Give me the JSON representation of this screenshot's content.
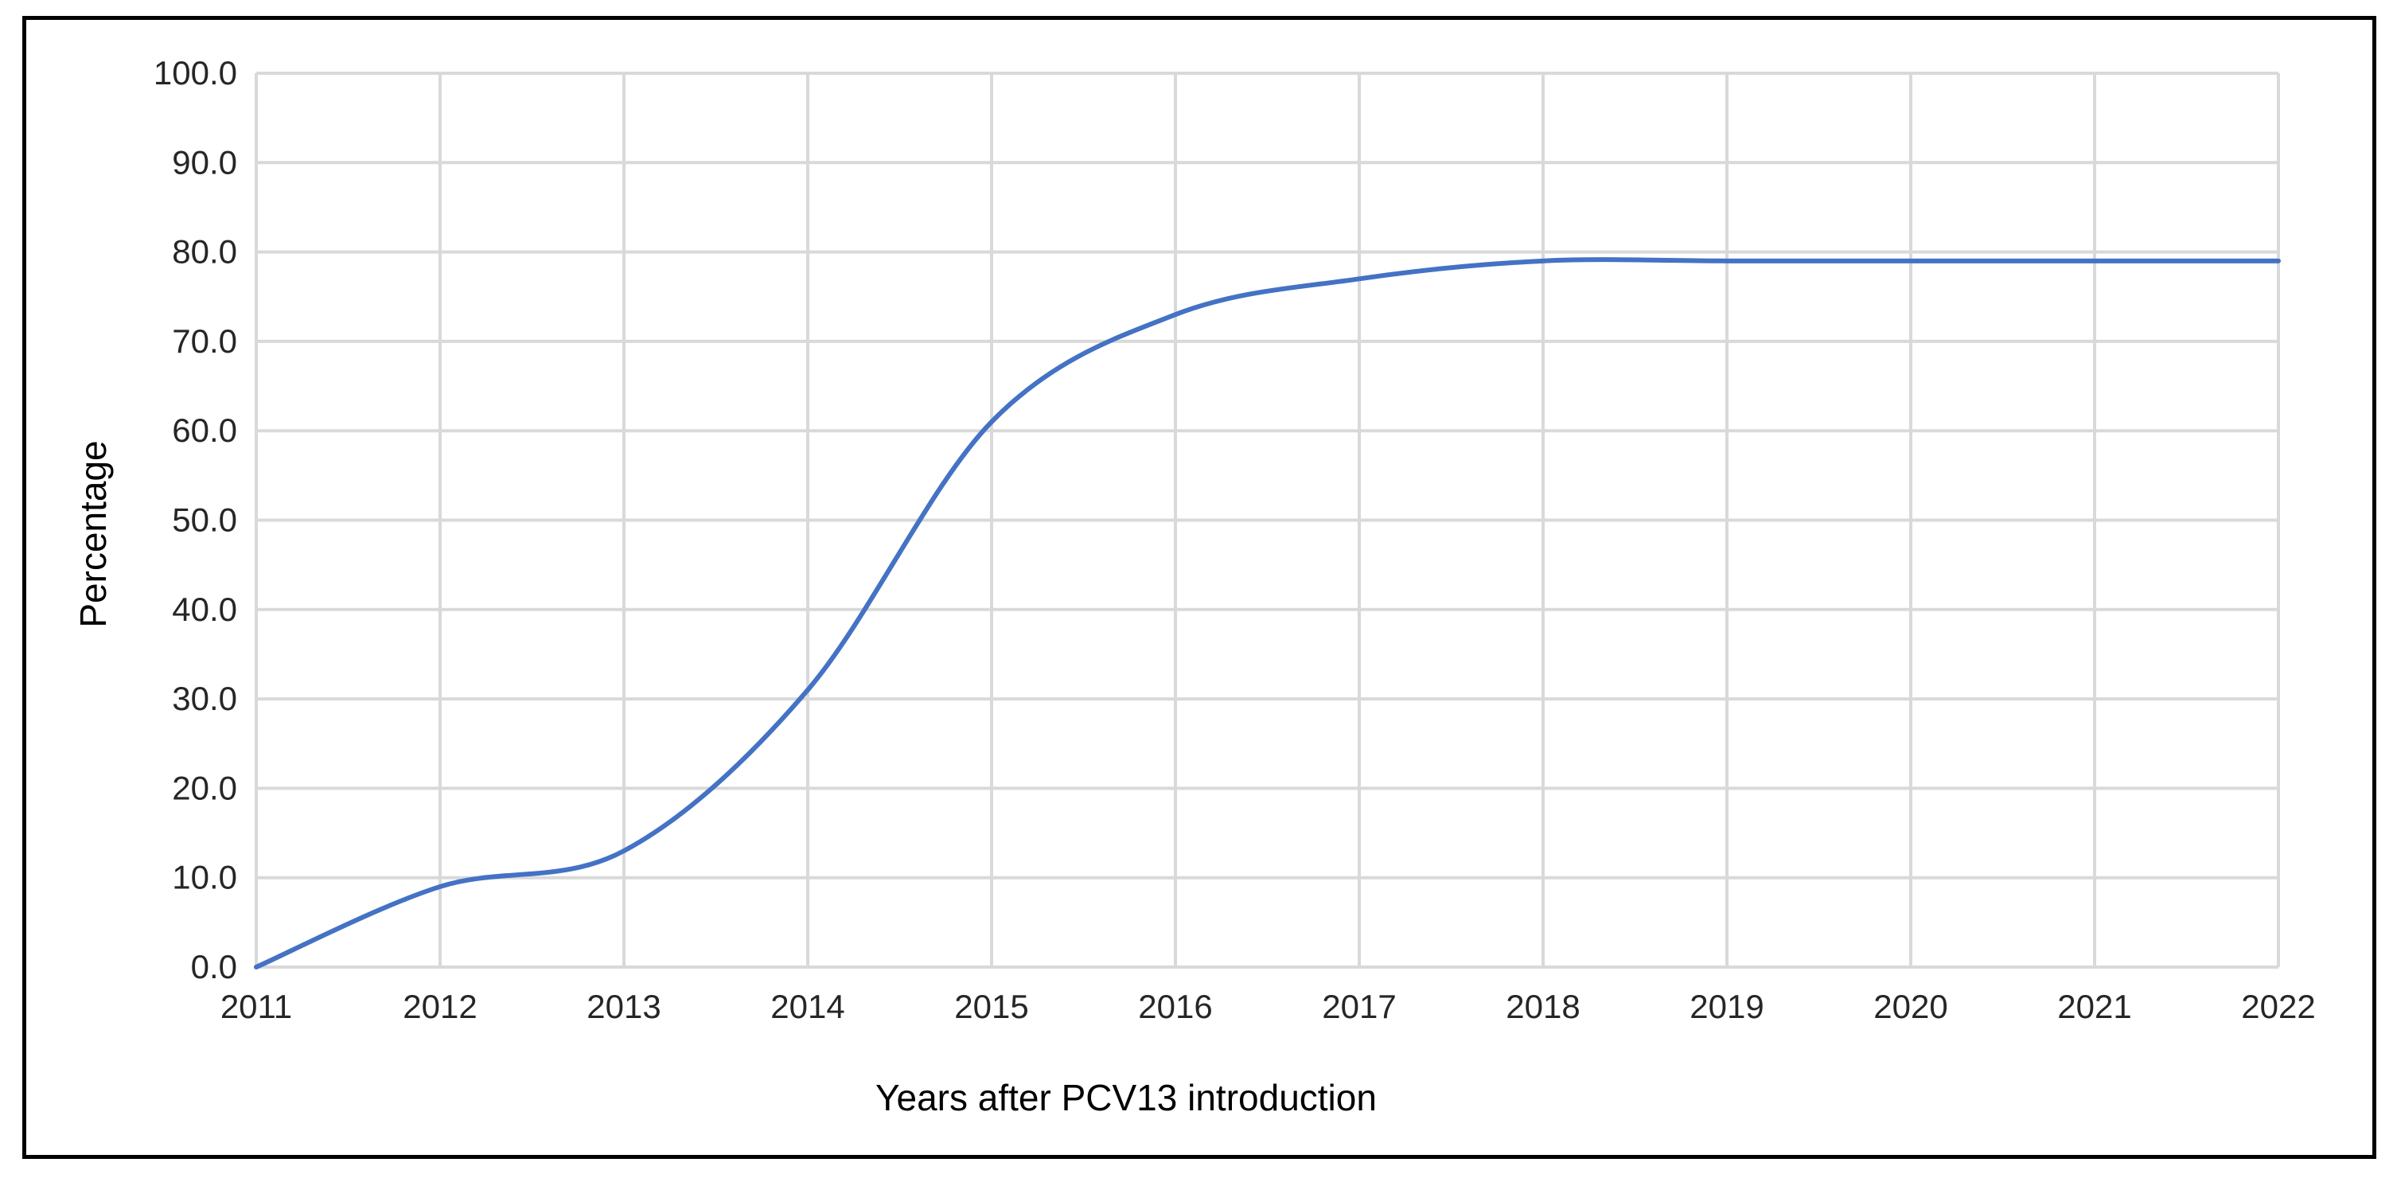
{
  "chart_data": {
    "type": "line",
    "title": "",
    "xlabel": "Years after PCV13 introduction",
    "ylabel": "Percentage",
    "x": [
      2011,
      2012,
      2013,
      2014,
      2015,
      2016,
      2017,
      2018,
      2019,
      2020,
      2021,
      2022
    ],
    "x_tick_labels": [
      "2011",
      "2012",
      "2013",
      "2014",
      "2015",
      "2016",
      "2017",
      "2018",
      "2019",
      "2020",
      "2021",
      "2022"
    ],
    "y_tick_labels": [
      "0.0",
      "10.0",
      "20.0",
      "30.0",
      "40.0",
      "50.0",
      "60.0",
      "70.0",
      "80.0",
      "90.0",
      "100.0"
    ],
    "ylim": [
      0,
      100
    ],
    "xlim": [
      2011,
      2022
    ],
    "grid": true,
    "smooth": true,
    "series": [
      {
        "values": [
          0,
          9,
          13,
          31,
          61,
          73,
          77,
          79,
          79,
          79,
          79,
          79
        ],
        "color": "#4472C4"
      }
    ]
  }
}
